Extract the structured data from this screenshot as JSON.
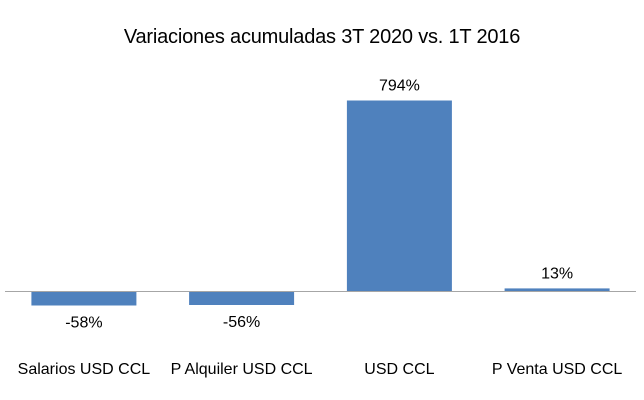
{
  "chart_data": {
    "type": "bar",
    "title": "Variaciones acumuladas 3T 2020 vs. 1T 2016",
    "categories": [
      "Salarios USD CCL",
      "P Alquiler USD CCL",
      "USD CCL",
      "P Venta USD CCL"
    ],
    "values": [
      -58,
      -56,
      794,
      13
    ],
    "data_labels": [
      "-58%",
      "-56%",
      "794%",
      "13%"
    ],
    "value_unit": "%",
    "bar_color": "#4f81bd",
    "axis_color": "#a6a6a6",
    "grid": false,
    "legend": "none"
  }
}
